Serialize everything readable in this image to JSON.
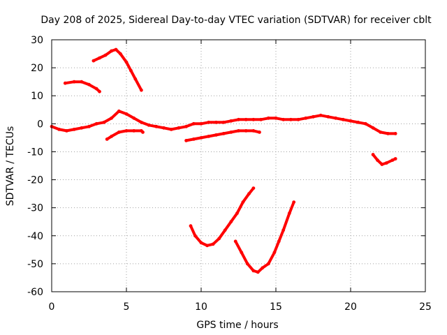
{
  "chart_data": {
    "type": "line",
    "title": "Day 208 of 2025, Sidereal Day-to-day VTEC variation (SDTVAR) for receiver cblt",
    "xlabel": "GPS time / hours",
    "ylabel": "SDTVAR / TECUs",
    "xlim": [
      0,
      25
    ],
    "ylim": [
      -60,
      30
    ],
    "x_ticks": [
      "0",
      "5",
      "10",
      "15",
      "20",
      "25"
    ],
    "y_ticks": [
      "30",
      "20",
      "10",
      "0",
      "-10",
      "-20",
      "-30",
      "-40",
      "-50",
      "-60"
    ],
    "grid": true,
    "color": "#ff0000",
    "series": [
      {
        "name": "main-band",
        "x": [
          0,
          0.5,
          1,
          1.5,
          2,
          2.5,
          3,
          3.5,
          4,
          4.5,
          5,
          5.5,
          6,
          6.5,
          7,
          7.5,
          8,
          8.5,
          9,
          9.5,
          10,
          10.5,
          11,
          11.5,
          12,
          12.5,
          13,
          13.5,
          14,
          14.5,
          15,
          15.5,
          16,
          16.5,
          17,
          17.5,
          18,
          18.5,
          19,
          19.5,
          20,
          20.5,
          21,
          21.5,
          22,
          22.5,
          23
        ],
        "y": [
          -1,
          -2,
          -2.5,
          -2,
          -1.5,
          -1,
          0,
          0.5,
          2,
          4.5,
          3.5,
          2,
          0.5,
          -0.5,
          -1,
          -1.5,
          -2,
          -1.5,
          -1,
          0,
          0,
          0.5,
          0.5,
          0.5,
          1,
          1.5,
          1.5,
          1.5,
          1.5,
          2,
          2,
          1.5,
          1.5,
          1.5,
          2,
          2.5,
          3,
          2.5,
          2,
          1.5,
          1,
          0.5,
          0,
          -1.5,
          -3,
          -3.5,
          -3.5
        ]
      },
      {
        "name": "low-band-a",
        "x": [
          3.7,
          4,
          4.5,
          5,
          5.5,
          6,
          6.1
        ],
        "y": [
          -5.5,
          -4.5,
          -3,
          -2.5,
          -2.5,
          -2.5,
          -3
        ]
      },
      {
        "name": "low-band-b",
        "x": [
          9,
          9.5,
          10,
          10.5,
          11,
          11.5,
          12,
          12.5,
          13,
          13.5,
          13.9
        ],
        "y": [
          -6,
          -5.5,
          -5,
          -4.5,
          -4,
          -3.5,
          -3,
          -2.5,
          -2.5,
          -2.5,
          -3
        ]
      },
      {
        "name": "arc-upper-a",
        "x": [
          0.9,
          1.5,
          2,
          2.5,
          3,
          3.2
        ],
        "y": [
          14.5,
          15,
          15,
          14,
          12.5,
          11.5
        ]
      },
      {
        "name": "arc-upper-b",
        "x": [
          2.8,
          3.2,
          3.6,
          4,
          4.3,
          4.6,
          5,
          5.3,
          5.6,
          6
        ],
        "y": [
          22.5,
          23.5,
          24.5,
          26,
          26.5,
          25,
          22,
          19,
          16,
          12
        ]
      },
      {
        "name": "arc-low-a",
        "x": [
          9.3,
          9.6,
          10,
          10.4,
          10.8,
          11.2,
          11.6,
          12,
          12.4,
          12.8,
          13.2,
          13.5
        ],
        "y": [
          -36.5,
          -40,
          -42.5,
          -43.5,
          -43,
          -41,
          -38,
          -35,
          -32,
          -28,
          -25,
          -23
        ]
      },
      {
        "name": "arc-low-b",
        "x": [
          12.3,
          12.7,
          13.1,
          13.5,
          13.8,
          14.1,
          14.5,
          14.9,
          15.2,
          15.5,
          15.9,
          16.2
        ],
        "y": [
          -42,
          -46,
          -50,
          -52.5,
          -53,
          -51.5,
          -50,
          -46,
          -42,
          -38,
          -32,
          -28
        ]
      },
      {
        "name": "right-tail",
        "x": [
          21.5,
          21.8,
          22.1,
          22.4,
          22.8,
          23
        ],
        "y": [
          -11,
          -13,
          -14.5,
          -14,
          -13,
          -12.5
        ]
      }
    ]
  }
}
